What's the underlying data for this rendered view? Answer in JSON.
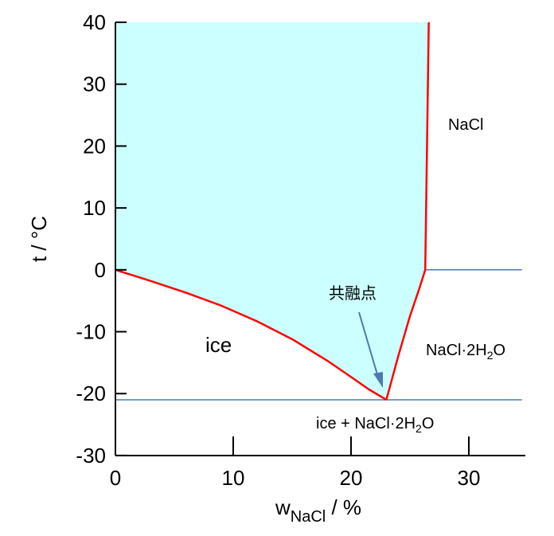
{
  "chart_data": {
    "type": "line",
    "title": "",
    "xlabel": {
      "main": "w",
      "sub": "NaCl",
      "unit": " / %"
    },
    "ylabel": "t / °C",
    "xlim": [
      0,
      35
    ],
    "ylim": [
      -30,
      40
    ],
    "x_ticks": [
      0,
      10,
      20,
      30
    ],
    "y_ticks": [
      40,
      30,
      20,
      10,
      0,
      -10,
      -20,
      -30
    ],
    "y_tick_labels": [
      "40",
      "30",
      "20",
      "10",
      "0",
      "-10",
      "-20",
      "-30"
    ],
    "fill_color": "#ccffff",
    "curve_color": "#ff0000",
    "line_color": "#4a7ab0",
    "series": [
      {
        "role": "ice-liquidus",
        "x": [
          0,
          3,
          6,
          9,
          12,
          15,
          18,
          20,
          21.5,
          23.0
        ],
        "y": [
          0,
          -1.8,
          -3.7,
          -5.8,
          -8.3,
          -11.2,
          -14.7,
          -17.3,
          -19.3,
          -21.0
        ]
      },
      {
        "role": "dihydrate-solubility",
        "x": [
          23.0,
          24.0,
          25.0,
          25.8,
          26.3
        ],
        "y": [
          -21.0,
          -14.0,
          -7.5,
          -3.0,
          0.0
        ]
      },
      {
        "role": "nacl-solubility",
        "x": [
          26.3,
          26.45,
          26.6
        ],
        "y": [
          0.0,
          20.0,
          40.0
        ]
      }
    ],
    "horizontal_lines": [
      {
        "role": "eutectic",
        "y": -21.0,
        "x_from": 0,
        "x_to": 34.5
      },
      {
        "role": "dihydrate-transition",
        "y": 0.0,
        "x_from": 26.3,
        "x_to": 34.5
      }
    ],
    "annotations": {
      "nacl": "NaCl",
      "ice": "ice",
      "dihydrate": {
        "base": "NaCl·2H",
        "sub": "2",
        "tail": "O"
      },
      "ice_dihydrate": {
        "base": "ice + NaCl·2H",
        "sub": "2",
        "tail": "O"
      },
      "eutectic": "共融点"
    },
    "grid": false
  }
}
